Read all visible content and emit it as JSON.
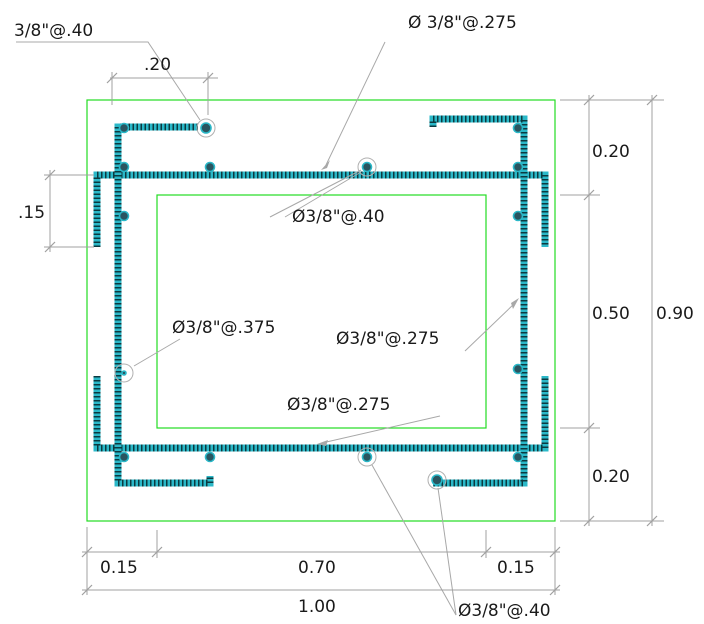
{
  "labels": {
    "top_left_spec": "3/8\"@.40",
    "top_center_spec": "Ø  3/8\"@.275",
    "inner_top_spec": "Ø3/8\"@.40",
    "left_spec": "Ø3/8\"@.375",
    "right_spec": "Ø3/8\"@.275",
    "bottom_spec": "Ø3/8\"@.275",
    "bottom_right_spec": "Ø3/8\"@.40"
  },
  "dimensions": {
    "top_width": ".20",
    "left_height": ".15",
    "right_top": "0.20",
    "right_mid": "0.50",
    "right_bottom": "0.20",
    "right_total": "0.90",
    "bottom_left": "0.15",
    "bottom_mid": "0.70",
    "bottom_right": "0.15",
    "bottom_total": "1.00"
  },
  "colors": {
    "outline": "#22dd22",
    "rebar": "#2bb8c8",
    "dimension": "#a0a0a0"
  }
}
